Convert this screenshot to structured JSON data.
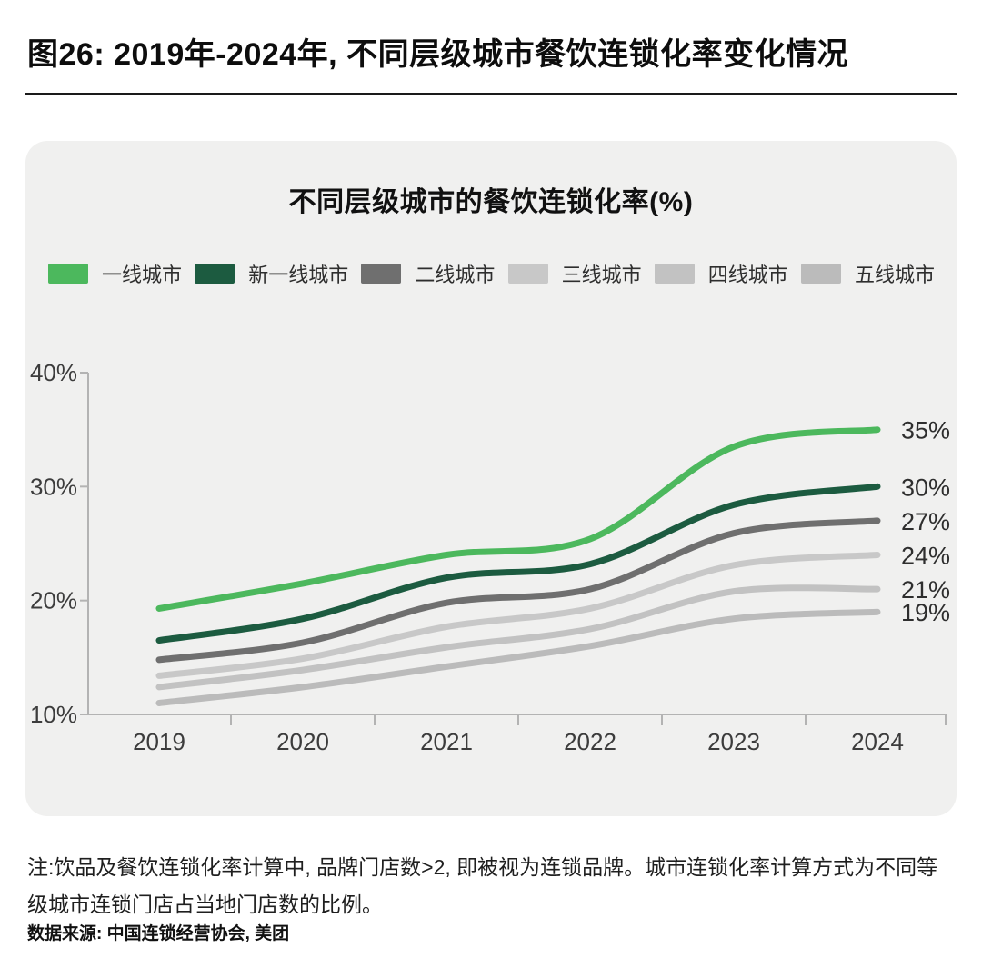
{
  "header": {
    "title": "图26: 2019年-2024年, 不同层级城市餐饮连锁化率变化情况"
  },
  "chart_data": {
    "type": "line",
    "title": "不同层级城市的餐饮连锁化率(%)",
    "x": [
      2019,
      2020,
      2021,
      2022,
      2023,
      2024
    ],
    "xlabels": [
      "2019",
      "2020",
      "2021",
      "2022",
      "2023",
      "2024"
    ],
    "ylim": [
      10,
      40
    ],
    "ytick_values": [
      40,
      30,
      20,
      10
    ],
    "ytick_labels": [
      "40%",
      "30%",
      "20%",
      "10%"
    ],
    "grid": false,
    "legend_position": "top",
    "axis_color": "#b3b3b3",
    "tick_label_color": "#3c3c3c",
    "end_label_color": "#2e2e2e",
    "series": [
      {
        "name": "一线城市",
        "color": "#4CB85D",
        "values": [
          19.3,
          21.5,
          24.0,
          25.4,
          33.5,
          35.0
        ],
        "end_label": "35%"
      },
      {
        "name": "新一线城市",
        "color": "#1C5B40",
        "values": [
          16.5,
          18.4,
          22.0,
          23.2,
          28.4,
          30.0
        ],
        "end_label": "30%"
      },
      {
        "name": "二线城市",
        "color": "#6F6F6F",
        "values": [
          14.8,
          16.3,
          19.8,
          21.0,
          25.9,
          27.0
        ],
        "end_label": "27%"
      },
      {
        "name": "三线城市",
        "color": "#C8C8C8",
        "values": [
          13.4,
          14.9,
          17.7,
          19.3,
          23.1,
          24.0
        ],
        "end_label": "24%"
      },
      {
        "name": "四线城市",
        "color": "#C2C2C2",
        "values": [
          12.4,
          13.9,
          15.9,
          17.5,
          20.8,
          21.0
        ],
        "end_label": "21%"
      },
      {
        "name": "五线城市",
        "color": "#BBBBBB",
        "values": [
          11.0,
          12.4,
          14.2,
          16.0,
          18.4,
          19.0
        ],
        "end_label": "19%"
      }
    ]
  },
  "footer": {
    "note": "注:饮品及餐饮连锁化率计算中, 品牌门店数>2, 即被视为连锁品牌。城市连锁化率计算方式为不同等级城市连锁门店占当地门店数的比例。",
    "source": "数据来源: 中国连锁经营协会, 美团"
  }
}
